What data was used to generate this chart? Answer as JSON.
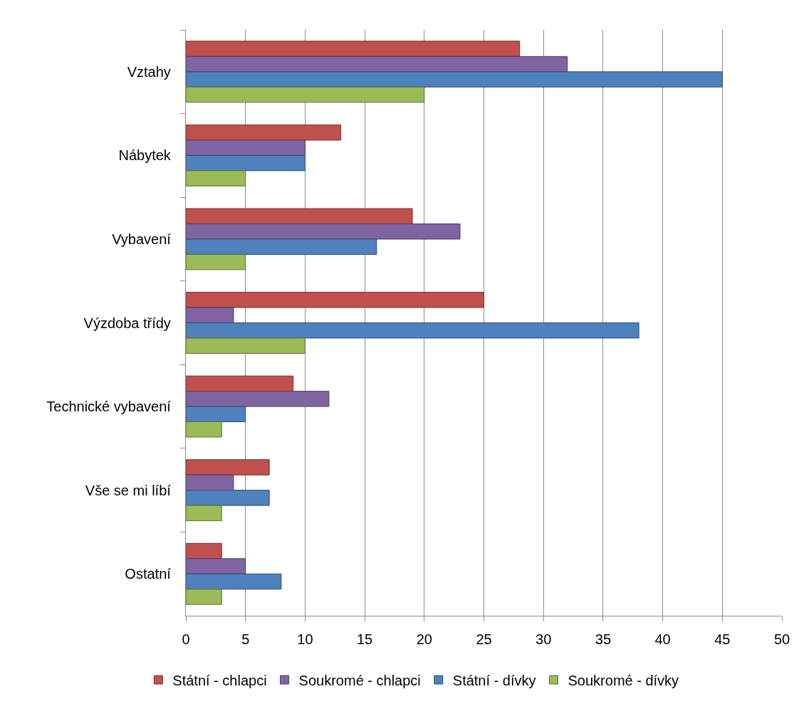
{
  "chart_data": {
    "type": "bar",
    "orientation": "horizontal",
    "categories": [
      "Vztahy",
      "Nábytek",
      "Vybavení",
      "Výzdoba třídy",
      "Technické vybavení",
      "Vše se mi líbí",
      "Ostatní"
    ],
    "series": [
      {
        "name": "Státní - chlapci",
        "color": "#c0504d",
        "values": [
          28,
          13,
          19,
          25,
          9,
          7,
          3
        ]
      },
      {
        "name": "Soukromé - chlapci",
        "color": "#8064a2",
        "values": [
          32,
          10,
          23,
          4,
          12,
          4,
          5
        ]
      },
      {
        "name": "Státní - dívky",
        "color": "#4f81bd",
        "values": [
          45,
          10,
          16,
          38,
          5,
          7,
          8
        ]
      },
      {
        "name": "Soukromé - dívky",
        "color": "#9bbb59",
        "values": [
          20,
          5,
          5,
          10,
          3,
          3,
          3
        ]
      }
    ],
    "xlim": [
      0,
      50
    ],
    "xticks": [
      0,
      5,
      10,
      15,
      20,
      25,
      30,
      35,
      40,
      45,
      50
    ],
    "grid": "x",
    "legend": "bottom"
  }
}
